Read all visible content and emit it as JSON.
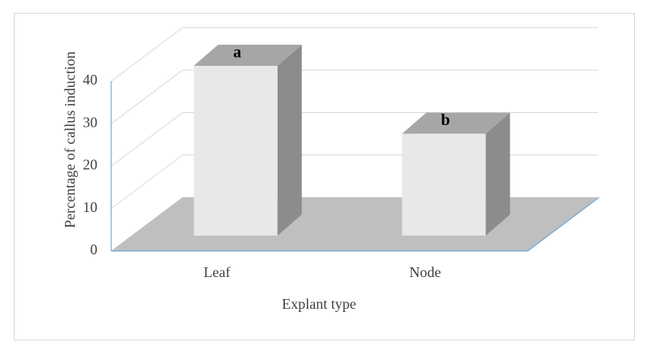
{
  "chart_data": {
    "type": "bar3d",
    "categories": [
      "Leaf",
      "Node"
    ],
    "values": [
      40,
      24
    ],
    "bar_labels": [
      "a",
      "b"
    ],
    "xlabel": "Explant type",
    "ylabel": "Percentage of callus induction",
    "ylim": [
      0,
      40
    ],
    "yticks": [
      0,
      10,
      20,
      30,
      40
    ],
    "grid": true,
    "color": "#e8e8e8"
  }
}
